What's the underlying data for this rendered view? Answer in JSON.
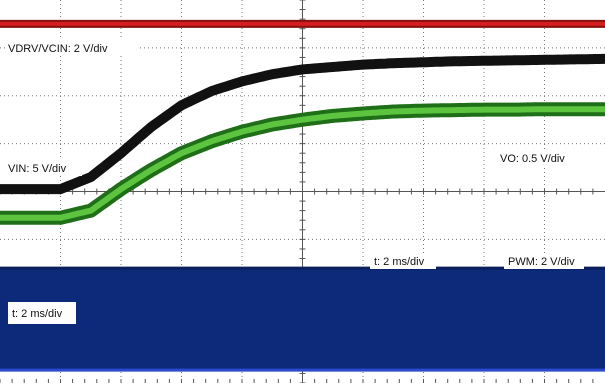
{
  "chart_data": {
    "type": "line",
    "title": "",
    "xlabel": "",
    "ylabel": "",
    "grid": true,
    "x_divisions": 10,
    "y_divisions": 8,
    "time_scale": "t: 2 ms/div",
    "x": [
      0,
      0.5,
      1,
      1.5,
      2,
      2.5,
      3,
      3.5,
      4,
      4.5,
      5,
      5.5,
      6,
      6.5,
      7,
      7.5,
      8,
      8.5,
      9,
      9.5,
      10
    ],
    "series": [
      {
        "name": "VDRV/VCIN",
        "label": "VDRV/VCIN: 2 V/div",
        "color": "#d11f1f",
        "values": [
          7.5,
          7.5,
          7.5,
          7.5,
          7.5,
          7.5,
          7.5,
          7.5,
          7.5,
          7.5,
          7.5,
          7.5,
          7.5,
          7.5,
          7.5,
          7.5,
          7.5,
          7.5,
          7.5,
          7.5,
          7.5
        ]
      },
      {
        "name": "VIN",
        "label": "VIN: 5 V/div",
        "color": "#111111",
        "values": [
          4.05,
          4.05,
          4.05,
          4.3,
          4.8,
          5.35,
          5.8,
          6.1,
          6.3,
          6.45,
          6.55,
          6.6,
          6.65,
          6.68,
          6.7,
          6.72,
          6.73,
          6.74,
          6.75,
          6.76,
          6.77
        ]
      },
      {
        "name": "VO",
        "label": "VO: 0.5 V/div",
        "color": "#2f9e25",
        "values": [
          3.45,
          3.45,
          3.45,
          3.6,
          4.05,
          4.45,
          4.8,
          5.05,
          5.25,
          5.4,
          5.5,
          5.58,
          5.63,
          5.67,
          5.69,
          5.7,
          5.71,
          5.71,
          5.72,
          5.72,
          5.72
        ]
      },
      {
        "name": "PWM",
        "label": "PWM: 2 V/div",
        "color": "#0d2a7a",
        "values": [
          0.27,
          0.27,
          0.27,
          0.27,
          0.27,
          0.27,
          0.27,
          0.27,
          0.27,
          0.27,
          0.27,
          0.27,
          0.27,
          0.27,
          0.27,
          0.27,
          0.27,
          0.27,
          0.27,
          0.27,
          0.27
        ],
        "band_high": 2.4
      }
    ],
    "annotations": [
      {
        "text": "t: 2 ms/div",
        "near": "pwm-band-top"
      },
      {
        "text": "t: 2 ms/div",
        "near": "pwm-band-left-box"
      }
    ]
  }
}
